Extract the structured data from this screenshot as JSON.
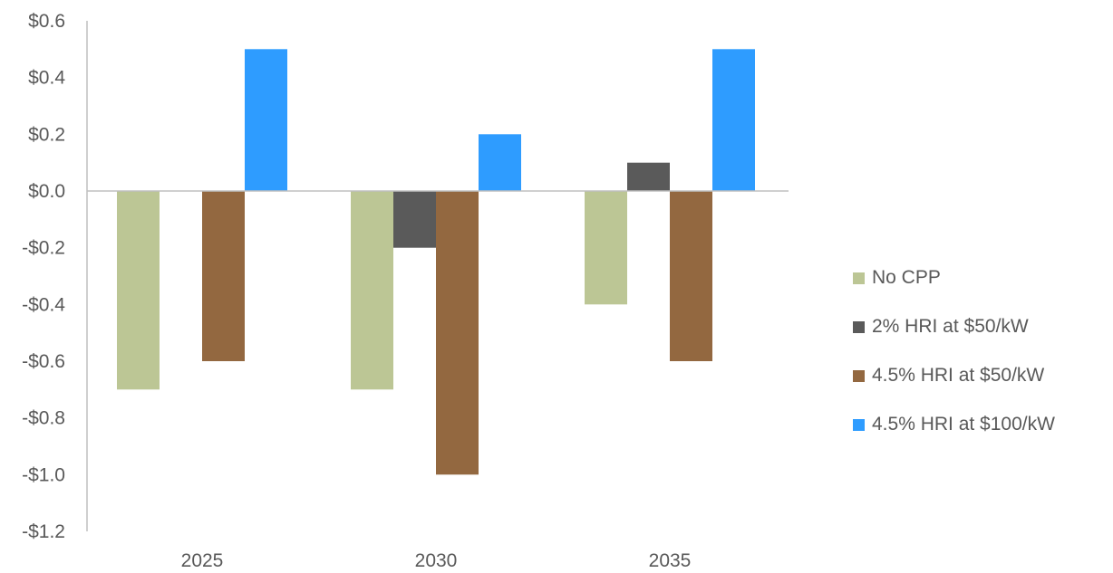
{
  "chart_data": {
    "type": "bar",
    "title": "",
    "xlabel": "",
    "ylabel": "",
    "categories": [
      "2025",
      "2030",
      "2035"
    ],
    "ylim": [
      -1.2,
      0.6
    ],
    "yticks": [
      0.6,
      0.4,
      0.2,
      0.0,
      -0.2,
      -0.4,
      -0.6,
      -0.8,
      -1.0,
      -1.2
    ],
    "ytick_labels": [
      "$0.6",
      "$0.4",
      "$0.2",
      "$0.0",
      "-$0.2",
      "-$0.4",
      "-$0.6",
      "-$0.8",
      "-$1.0",
      "-$1.2"
    ],
    "grid": false,
    "legend_position": "right",
    "series": [
      {
        "name": "No CPP",
        "color": "#bcc695",
        "values": [
          -0.7,
          -0.7,
          -0.4
        ]
      },
      {
        "name": "2% HRI at $50/kW",
        "color": "#5a5a5a",
        "values": [
          0.0,
          -0.2,
          0.1
        ]
      },
      {
        "name": "4.5% HRI at $50/kW",
        "color": "#936840",
        "values": [
          -0.6,
          -1.0,
          -0.6
        ]
      },
      {
        "name": "4.5% HRI at $100/kW",
        "color": "#2e9cff",
        "values": [
          0.5,
          0.2,
          0.5
        ]
      }
    ]
  }
}
